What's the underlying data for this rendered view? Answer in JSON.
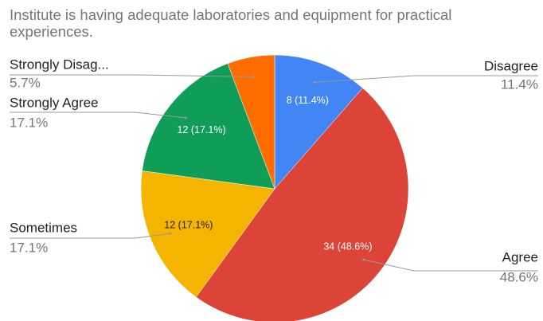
{
  "chart_data": {
    "type": "pie",
    "title": "Institute is having adequate laboratories and equipment for practical experiences.",
    "categories": [
      "Disagree",
      "Agree",
      "Sometimes",
      "Strongly Agree",
      "Strongly Disag..."
    ],
    "values": [
      8,
      34,
      12,
      12,
      4
    ],
    "value_labels": [
      "8 (11.4%)",
      "34 (48.6%)",
      "12 (17.1%)",
      "12 (17.1%)",
      null
    ],
    "percent_labels": [
      "11.4%",
      "48.6%",
      "17.1%",
      "17.1%",
      "5.7%"
    ],
    "colors": [
      "#4285f4",
      "#db4437",
      "#f4b400",
      "#0f9d58",
      "#ff6d01"
    ]
  }
}
